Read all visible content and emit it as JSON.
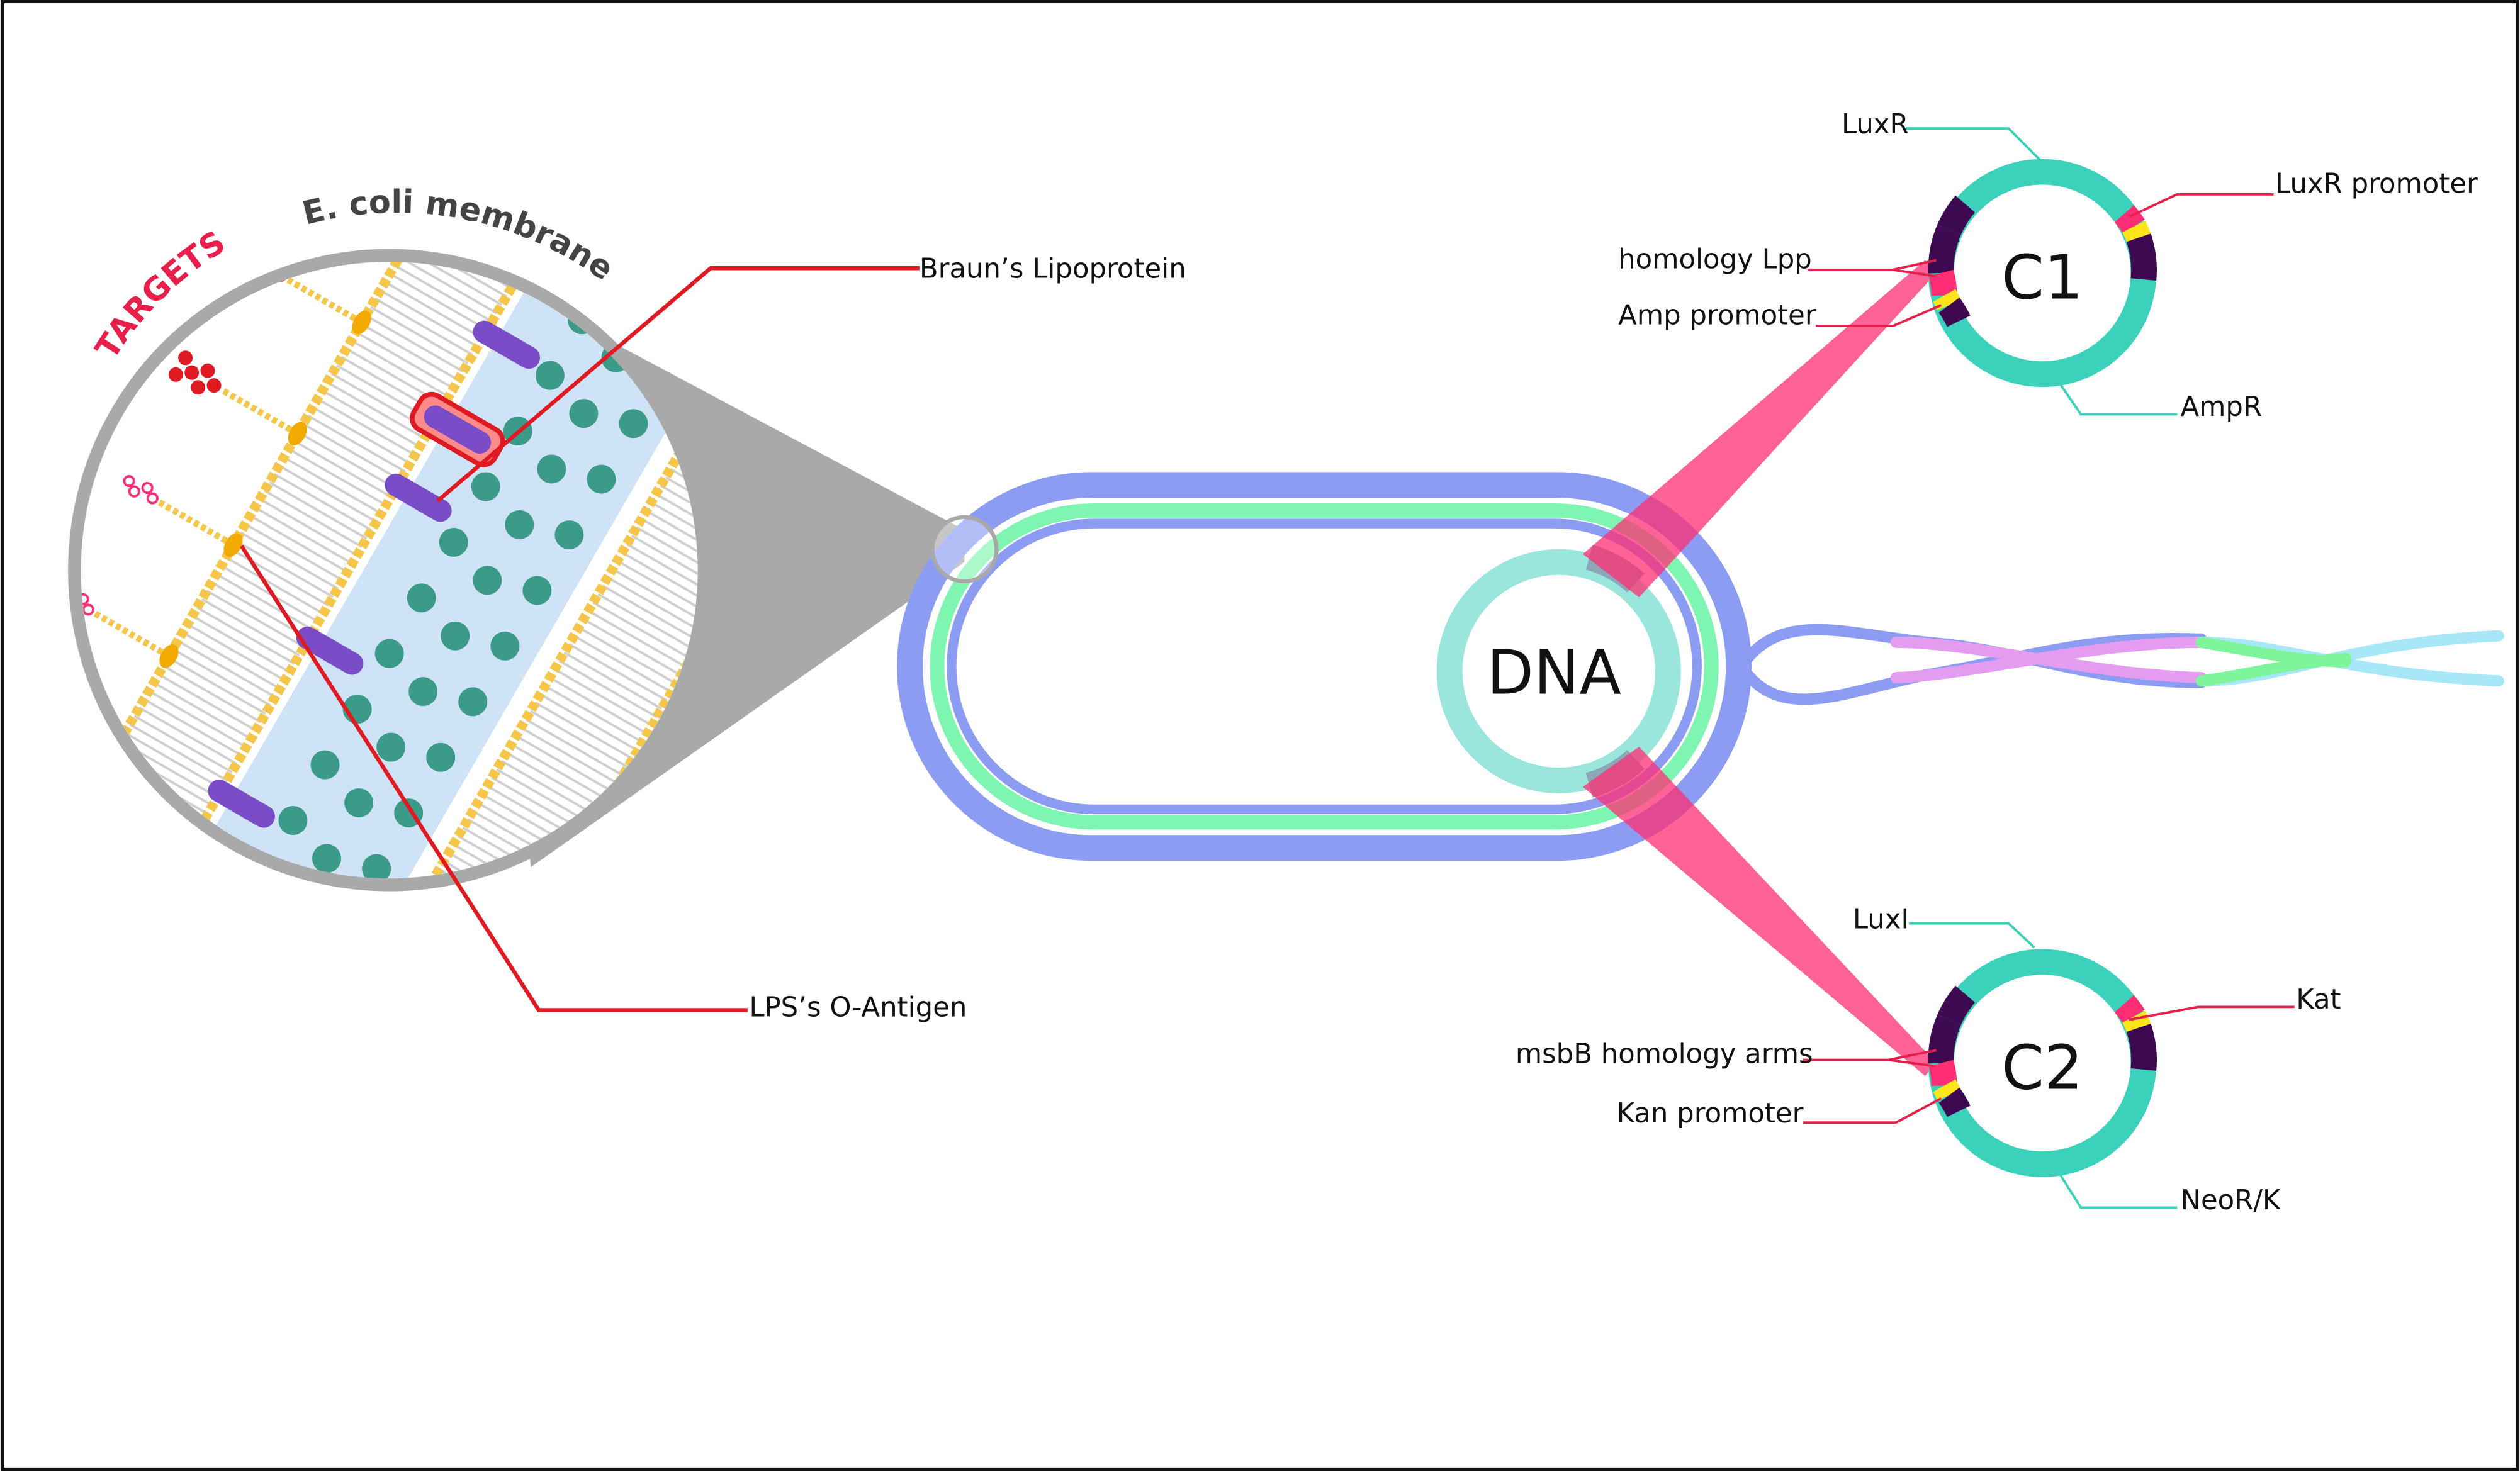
{
  "colors": {
    "teal": "#3bd1bb",
    "pink": "#ff2d73",
    "red": "#e01a22",
    "purple_dark": "#3d0a52",
    "yellow": "#ffe51a",
    "blue_wall": "#8c9cf2",
    "green_wall": "#7ef5b0",
    "lipid": "#f6c64a",
    "peptidoglycan": "#3b9a88",
    "protein": "#7a4cc7"
  },
  "membrane_panel": {
    "title": "E. coli membrane",
    "targets_label": "TARGETS",
    "callouts": {
      "braun": "Braun’s Lipoprotein",
      "lps": "LPS’s O-Antigen"
    }
  },
  "cell": {
    "dna_label": "DNA"
  },
  "plasmid_c1": {
    "name": "C1",
    "labels": {
      "top": "LuxR",
      "right": "LuxR promoter",
      "left1": "homology Lpp",
      "left2": "Amp promoter",
      "bottom": "AmpR"
    }
  },
  "plasmid_c2": {
    "name": "C2",
    "labels": {
      "top": "LuxI",
      "right": "Kat",
      "left1": "msbB homology arms",
      "left2": "Kan promoter",
      "bottom": "NeoR/K"
    }
  }
}
